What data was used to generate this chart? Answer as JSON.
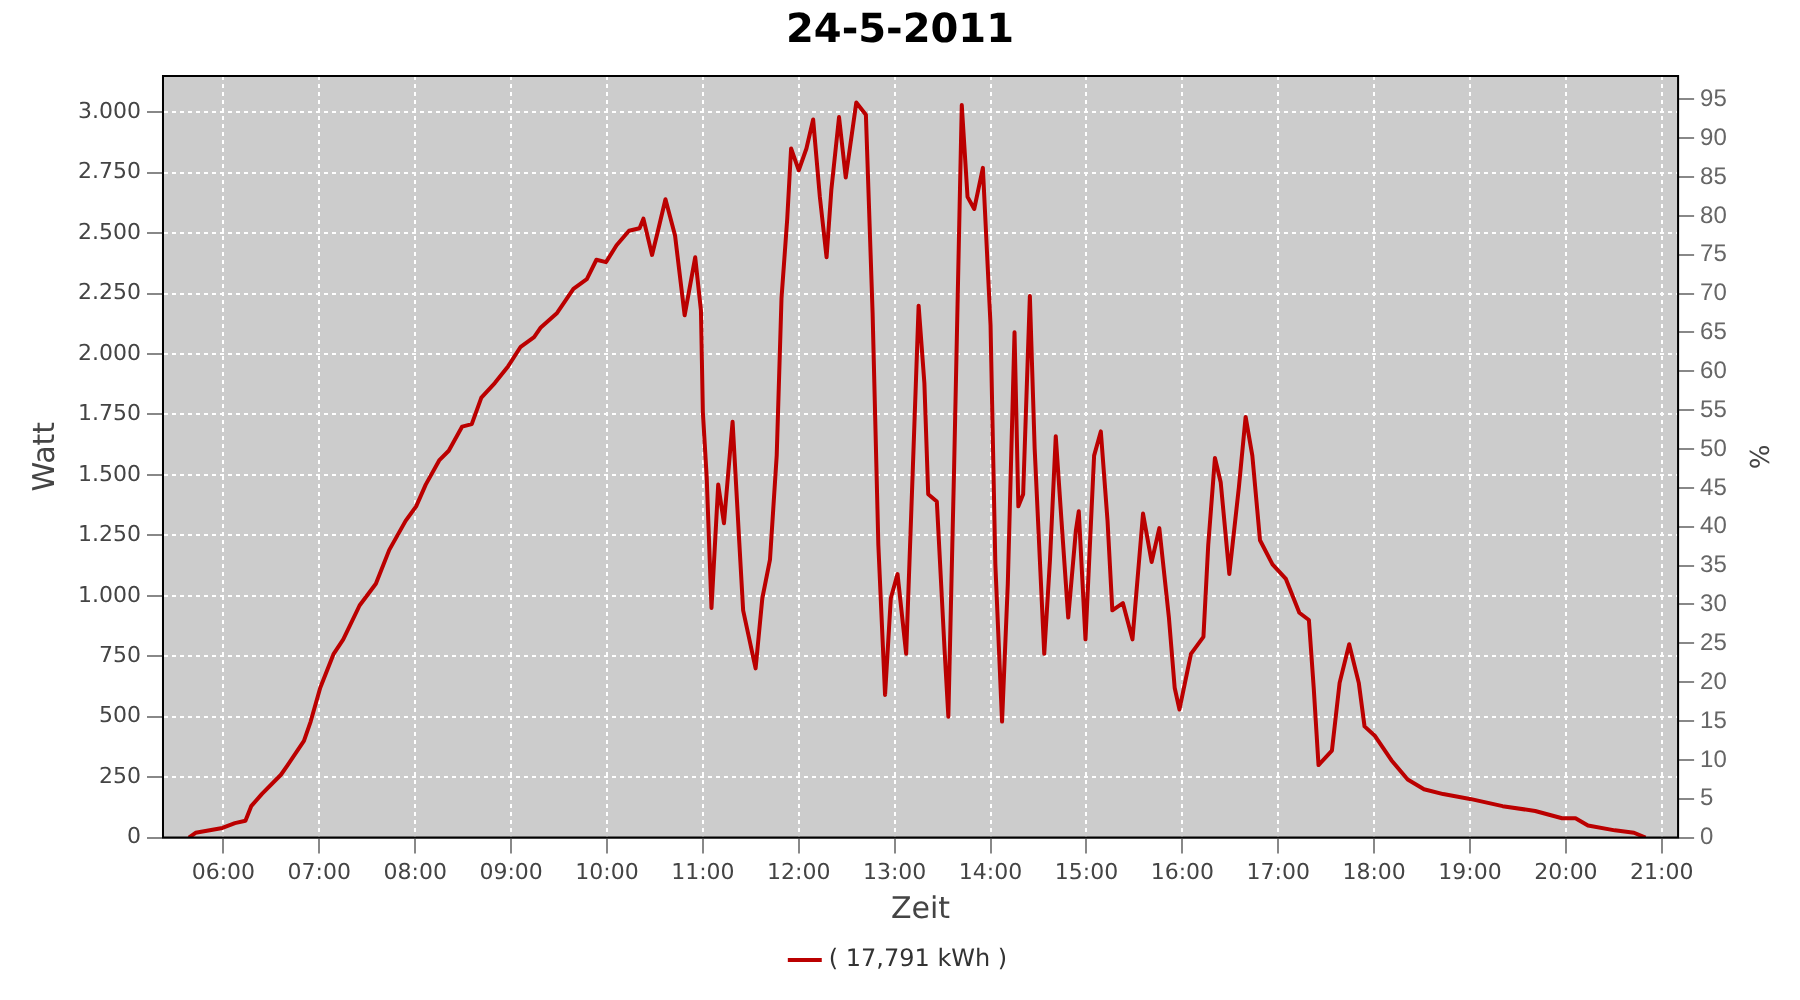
{
  "chart_data": {
    "type": "line",
    "title": "24-5-2011",
    "xlabel": "Zeit",
    "ylabel": "Watt",
    "y2label": "%",
    "x": [
      5.64,
      5.71,
      5.99,
      6.12,
      6.23,
      6.29,
      6.4,
      6.6,
      6.67,
      6.84,
      6.91,
      7.01,
      7.15,
      7.25,
      7.42,
      7.59,
      7.73,
      7.9,
      8.01,
      8.11,
      8.25,
      8.35,
      8.49,
      8.59,
      8.69,
      8.83,
      8.97,
      9.1,
      9.24,
      9.31,
      9.48,
      9.65,
      9.79,
      9.89,
      9.99,
      10.1,
      10.23,
      10.34,
      10.38,
      10.47,
      10.52,
      10.61,
      10.71,
      10.81,
      10.92,
      10.98,
      11.0,
      11.04,
      11.09,
      11.16,
      11.22,
      11.31,
      11.38,
      11.42,
      11.55,
      11.62,
      11.7,
      11.77,
      11.82,
      11.88,
      11.92,
      12.0,
      12.08,
      12.15,
      12.22,
      12.29,
      12.34,
      12.42,
      12.49,
      12.6,
      12.7,
      12.77,
      12.83,
      12.9,
      12.96,
      13.03,
      13.12,
      13.19,
      13.25,
      13.31,
      13.35,
      13.44,
      13.52,
      13.56,
      13.62,
      13.67,
      13.7,
      13.76,
      13.83,
      13.92,
      14.0,
      14.05,
      14.12,
      14.18,
      14.25,
      14.29,
      14.34,
      14.41,
      14.46,
      14.56,
      14.62,
      14.68,
      14.74,
      14.81,
      14.89,
      14.92,
      14.99,
      15.08,
      15.15,
      15.22,
      15.27,
      15.38,
      15.48,
      15.59,
      15.68,
      15.76,
      15.86,
      15.92,
      15.97,
      16.09,
      16.22,
      16.27,
      16.34,
      16.4,
      16.49,
      16.59,
      16.66,
      16.73,
      16.81,
      16.94,
      17.08,
      17.22,
      17.32,
      17.37,
      17.42,
      17.56,
      17.64,
      17.74,
      17.84,
      17.9,
      18.01,
      18.18,
      18.35,
      18.52,
      18.72,
      19.0,
      19.34,
      19.68,
      19.96,
      20.1,
      20.23,
      20.51,
      20.71,
      20.83
    ],
    "series": [
      {
        "name": "( 17,791 kWh )",
        "color": "#bb0000",
        "values": [
          0,
          20,
          40,
          60,
          70,
          130,
          180,
          260,
          300,
          400,
          480,
          620,
          760,
          820,
          960,
          1050,
          1190,
          1310,
          1370,
          1460,
          1560,
          1600,
          1700,
          1710,
          1820,
          1880,
          1950,
          2030,
          2070,
          2110,
          2170,
          2270,
          2310,
          2390,
          2380,
          2450,
          2510,
          2520,
          2560,
          2410,
          2490,
          2640,
          2490,
          2160,
          2400,
          2180,
          1760,
          1490,
          950,
          1460,
          1300,
          1720,
          1220,
          940,
          700,
          990,
          1150,
          1580,
          2230,
          2560,
          2850,
          2760,
          2850,
          2970,
          2650,
          2400,
          2680,
          2980,
          2730,
          3040,
          2990,
          2170,
          1210,
          590,
          990,
          1090,
          760,
          1530,
          2200,
          1880,
          1420,
          1390,
          780,
          500,
          1530,
          2470,
          3030,
          2650,
          2600,
          2770,
          2120,
          1130,
          480,
          1050,
          2090,
          1370,
          1420,
          2240,
          1610,
          760,
          1150,
          1660,
          1310,
          910,
          1270,
          1350,
          820,
          1580,
          1680,
          1310,
          940,
          970,
          820,
          1340,
          1140,
          1280,
          910,
          620,
          530,
          760,
          830,
          1210,
          1570,
          1470,
          1090,
          1450,
          1740,
          1580,
          1230,
          1130,
          1070,
          930,
          900,
          620,
          300,
          360,
          640,
          800,
          640,
          460,
          420,
          320,
          240,
          200,
          180,
          160,
          130,
          110,
          80,
          80,
          50,
          30,
          20,
          0
        ]
      }
    ],
    "xlim": [
      5.37,
      21.17
    ],
    "xticks": [
      {
        "value": 6,
        "label": "06:00"
      },
      {
        "value": 7,
        "label": "07:00"
      },
      {
        "value": 8,
        "label": "08:00"
      },
      {
        "value": 9,
        "label": "09:00"
      },
      {
        "value": 10,
        "label": "10:00"
      },
      {
        "value": 11,
        "label": "11:00"
      },
      {
        "value": 12,
        "label": "12:00"
      },
      {
        "value": 13,
        "label": "13:00"
      },
      {
        "value": 14,
        "label": "14:00"
      },
      {
        "value": 15,
        "label": "15:00"
      },
      {
        "value": 16,
        "label": "16:00"
      },
      {
        "value": 17,
        "label": "17:00"
      },
      {
        "value": 18,
        "label": "18:00"
      },
      {
        "value": 19,
        "label": "19:00"
      },
      {
        "value": 20,
        "label": "20:00"
      },
      {
        "value": 21,
        "label": "21:00"
      }
    ],
    "ylim": [
      0,
      3150
    ],
    "yticks": [
      0,
      250,
      500,
      750,
      {
        "value": 1000,
        "label": "1.000"
      },
      {
        "value": 1250,
        "label": "1.250"
      },
      {
        "value": 1500,
        "label": "1.500"
      },
      {
        "value": 1750,
        "label": "1.750"
      },
      {
        "value": 2000,
        "label": "2.000"
      },
      {
        "value": 2250,
        "label": "2.250"
      },
      {
        "value": 2500,
        "label": "2.500"
      },
      {
        "value": 2750,
        "label": "2.750"
      },
      {
        "value": 3000,
        "label": "3.000"
      }
    ],
    "y2lim": [
      0,
      98
    ],
    "y2ticks": [
      0,
      5,
      10,
      15,
      20,
      25,
      30,
      35,
      40,
      45,
      50,
      55,
      60,
      65,
      70,
      75,
      80,
      85,
      90,
      95
    ],
    "grid": true,
    "legend": "bottom",
    "marker": "none",
    "line_style": "solid"
  }
}
